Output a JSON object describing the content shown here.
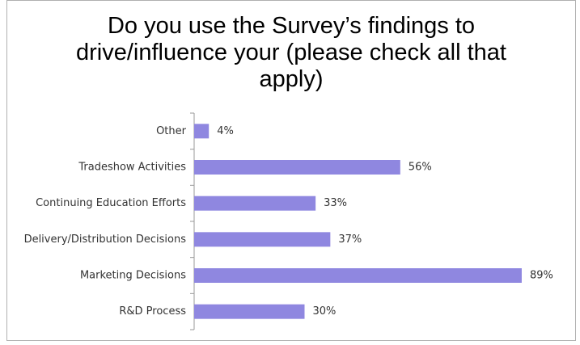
{
  "chart_data": {
    "type": "bar",
    "orientation": "horizontal",
    "title": "Do you use the Survey’s findings to drive/influence your (please check all that apply)",
    "categories": [
      "Other",
      "Tradeshow Activities",
      "Continuing Education Efforts",
      "Delivery/Distribution Decisions",
      "Marketing Decisions",
      "R&D Process"
    ],
    "values": [
      4,
      56,
      33,
      37,
      89,
      30
    ],
    "value_labels": [
      "4%",
      "56%",
      "33%",
      "37%",
      "89%",
      "30%"
    ],
    "color": "#8f87e0"
  }
}
